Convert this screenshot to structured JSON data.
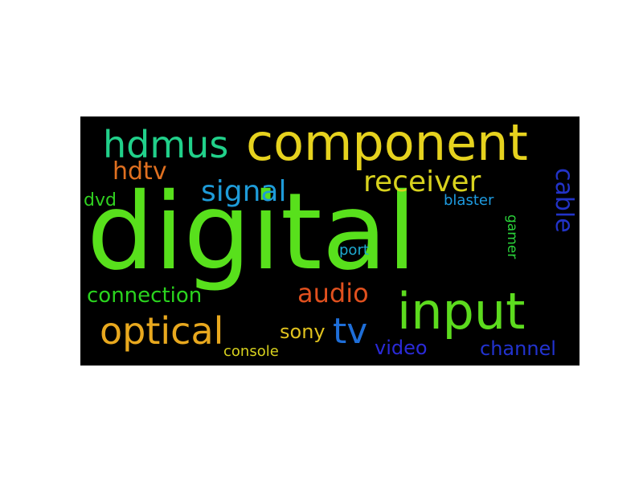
{
  "wordcloud": {
    "words": [
      {
        "id": "digital",
        "text": "digital",
        "color": "#58e01c"
      },
      {
        "id": "component",
        "text": "component",
        "color": "#e6d21e"
      },
      {
        "id": "hdmus",
        "text": "hdmus",
        "color": "#21d08a"
      },
      {
        "id": "input",
        "text": "input",
        "color": "#5cdb1e"
      },
      {
        "id": "optical",
        "text": "optical",
        "color": "#e8a81e"
      },
      {
        "id": "receiver",
        "text": "receiver",
        "color": "#d8d21e"
      },
      {
        "id": "signal",
        "text": "signal",
        "color": "#1e9bd8"
      },
      {
        "id": "hdtv",
        "text": "hdtv",
        "color": "#e07020"
      },
      {
        "id": "tv",
        "text": "tv",
        "color": "#1e6ed8"
      },
      {
        "id": "audio",
        "text": "audio",
        "color": "#e0501e"
      },
      {
        "id": "connection",
        "text": "connection",
        "color": "#2ad41e"
      },
      {
        "id": "sony",
        "text": "sony",
        "color": "#e0c21e"
      },
      {
        "id": "video",
        "text": "video",
        "color": "#2a2ad8"
      },
      {
        "id": "channel",
        "text": "channel",
        "color": "#2233d0"
      },
      {
        "id": "console",
        "text": "console",
        "color": "#d8d21e"
      },
      {
        "id": "dvd",
        "text": "dvd",
        "color": "#30d020"
      },
      {
        "id": "port",
        "text": "port",
        "color": "#1eaad0"
      },
      {
        "id": "blaster",
        "text": "blaster",
        "color": "#1e9be0"
      },
      {
        "id": "cable",
        "text": "cable",
        "color": "#2233c8",
        "vertical": true
      },
      {
        "id": "gamer",
        "text": "gamer",
        "color": "#2ad43a",
        "vertical": true
      }
    ]
  }
}
